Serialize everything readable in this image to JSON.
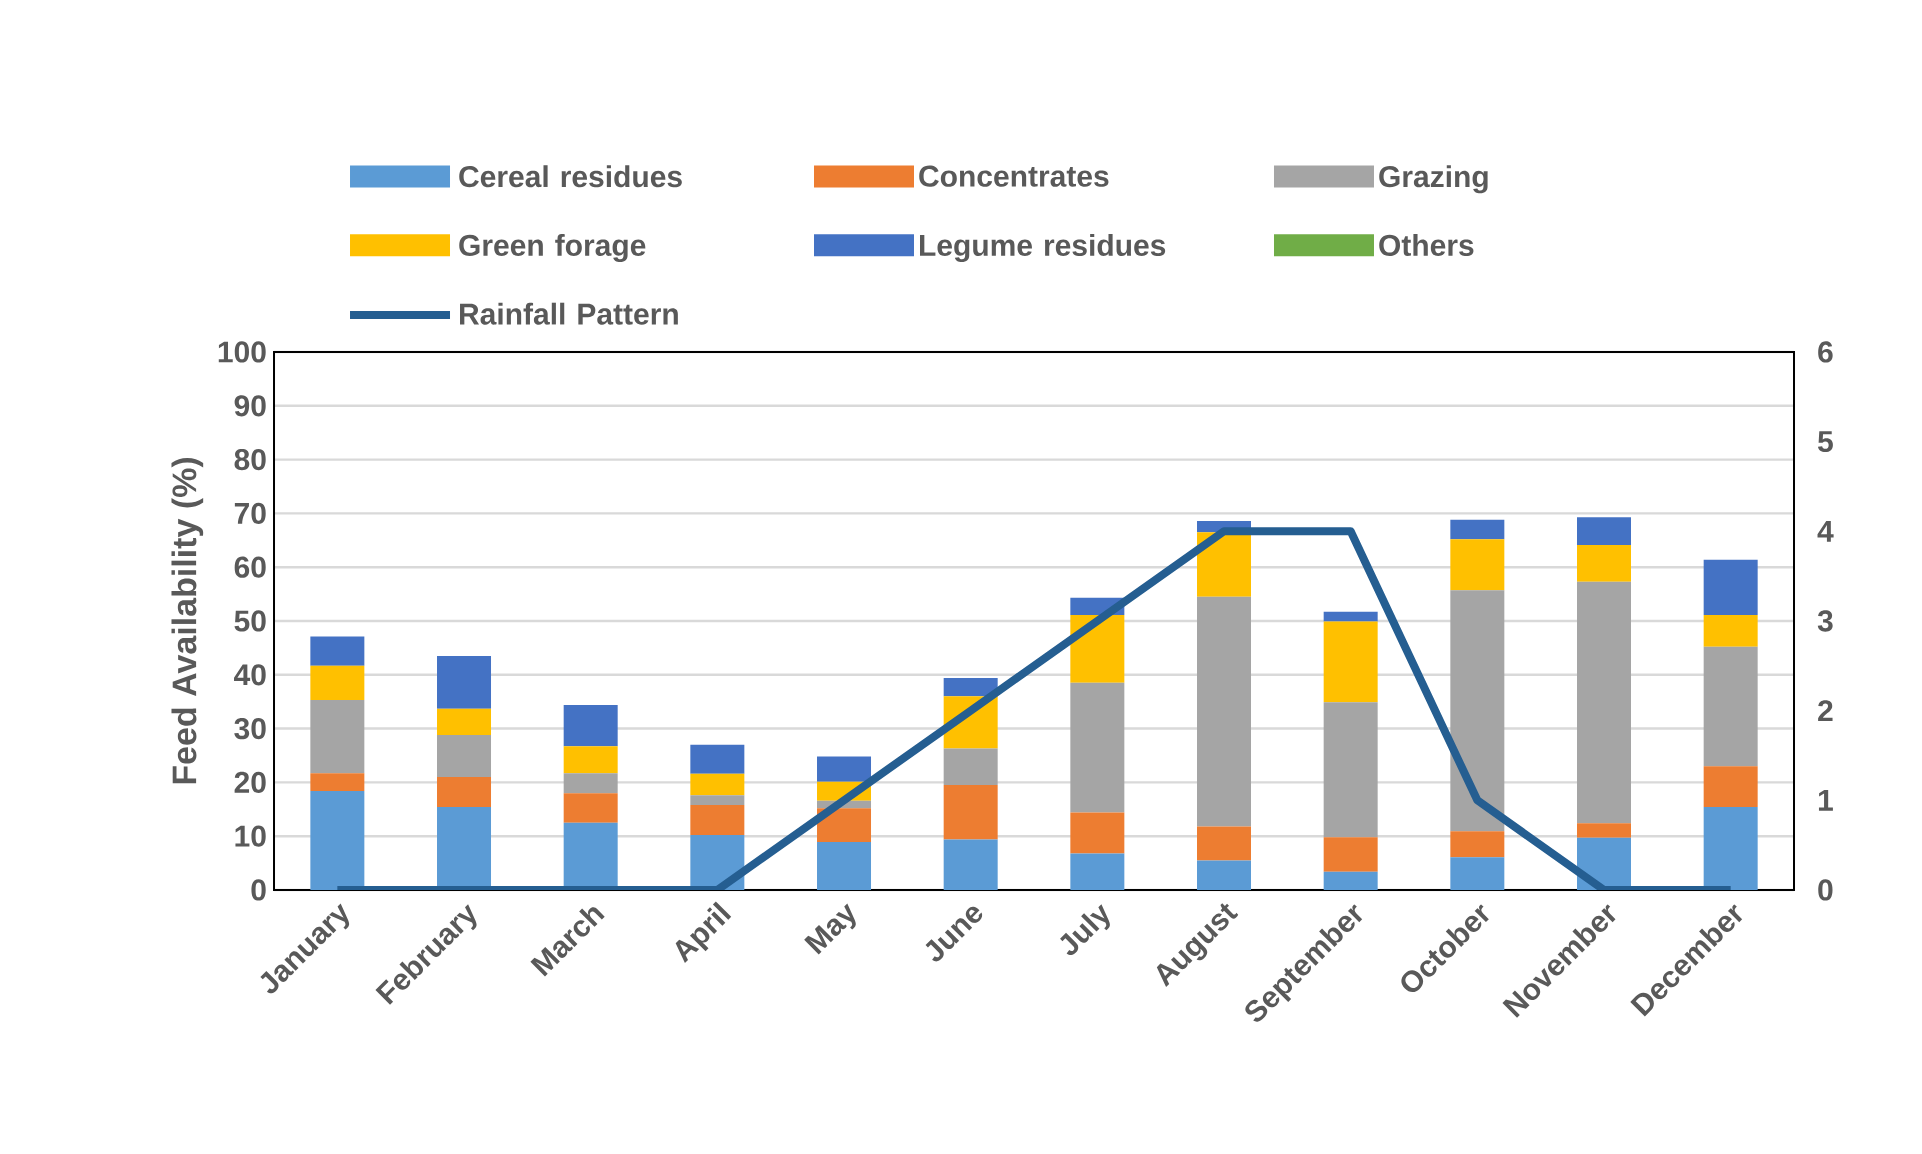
{
  "chart_data": {
    "type": "bar",
    "stacked": true,
    "grid": "y",
    "legend": "top",
    "marker": "none",
    "line_style": "solid",
    "ylabel": "Feed Availability (%)",
    "categories": [
      "January",
      "February",
      "March",
      "April",
      "May",
      "June",
      "July",
      "August",
      "September",
      "October",
      "November",
      "December"
    ],
    "ylim": [
      0,
      100
    ],
    "yticks": [
      0,
      10,
      20,
      30,
      40,
      50,
      60,
      70,
      80,
      90,
      100
    ],
    "y2lim": [
      0,
      6
    ],
    "y2ticks": [
      0,
      1,
      2,
      3,
      4,
      5,
      6
    ],
    "series": [
      {
        "name": "Cereal residues",
        "color": "#5b9bd5",
        "values": [
          18.4,
          15.4,
          12.5,
          10.2,
          8.9,
          9.4,
          6.8,
          5.5,
          3.4,
          6.1,
          9.7,
          15.4
        ]
      },
      {
        "name": "Concentrates",
        "color": "#ed7d31",
        "values": [
          3.3,
          5.6,
          5.5,
          5.6,
          6.3,
          10.1,
          7.6,
          6.3,
          6.4,
          4.8,
          2.7,
          7.6
        ]
      },
      {
        "name": "Grazing",
        "color": "#a5a5a5",
        "values": [
          13.6,
          7.8,
          3.7,
          1.8,
          1.4,
          6.8,
          24.1,
          42.7,
          25.1,
          44.8,
          44.9,
          22.2
        ]
      },
      {
        "name": "Green forage",
        "color": "#ffc000",
        "values": [
          6.4,
          4.9,
          5.0,
          4.0,
          3.5,
          9.7,
          12.6,
          12.0,
          15.0,
          9.5,
          6.8,
          5.9
        ]
      },
      {
        "name": "Legume residues",
        "color": "#4472c4",
        "values": [
          5.4,
          9.8,
          7.7,
          5.4,
          4.7,
          3.4,
          3.2,
          2.1,
          1.8,
          3.6,
          5.2,
          10.3
        ]
      },
      {
        "name": "Others",
        "color": "#70ad47",
        "values": [
          0,
          0,
          0,
          0,
          0,
          0,
          0,
          0,
          0,
          0,
          0,
          0
        ]
      },
      {
        "name": "Rainfall Pattern",
        "color": "#255e91",
        "type": "line",
        "axis": "y2",
        "values": [
          0,
          0,
          0,
          0,
          1,
          2,
          3,
          4,
          4,
          1,
          0,
          0
        ]
      }
    ]
  }
}
